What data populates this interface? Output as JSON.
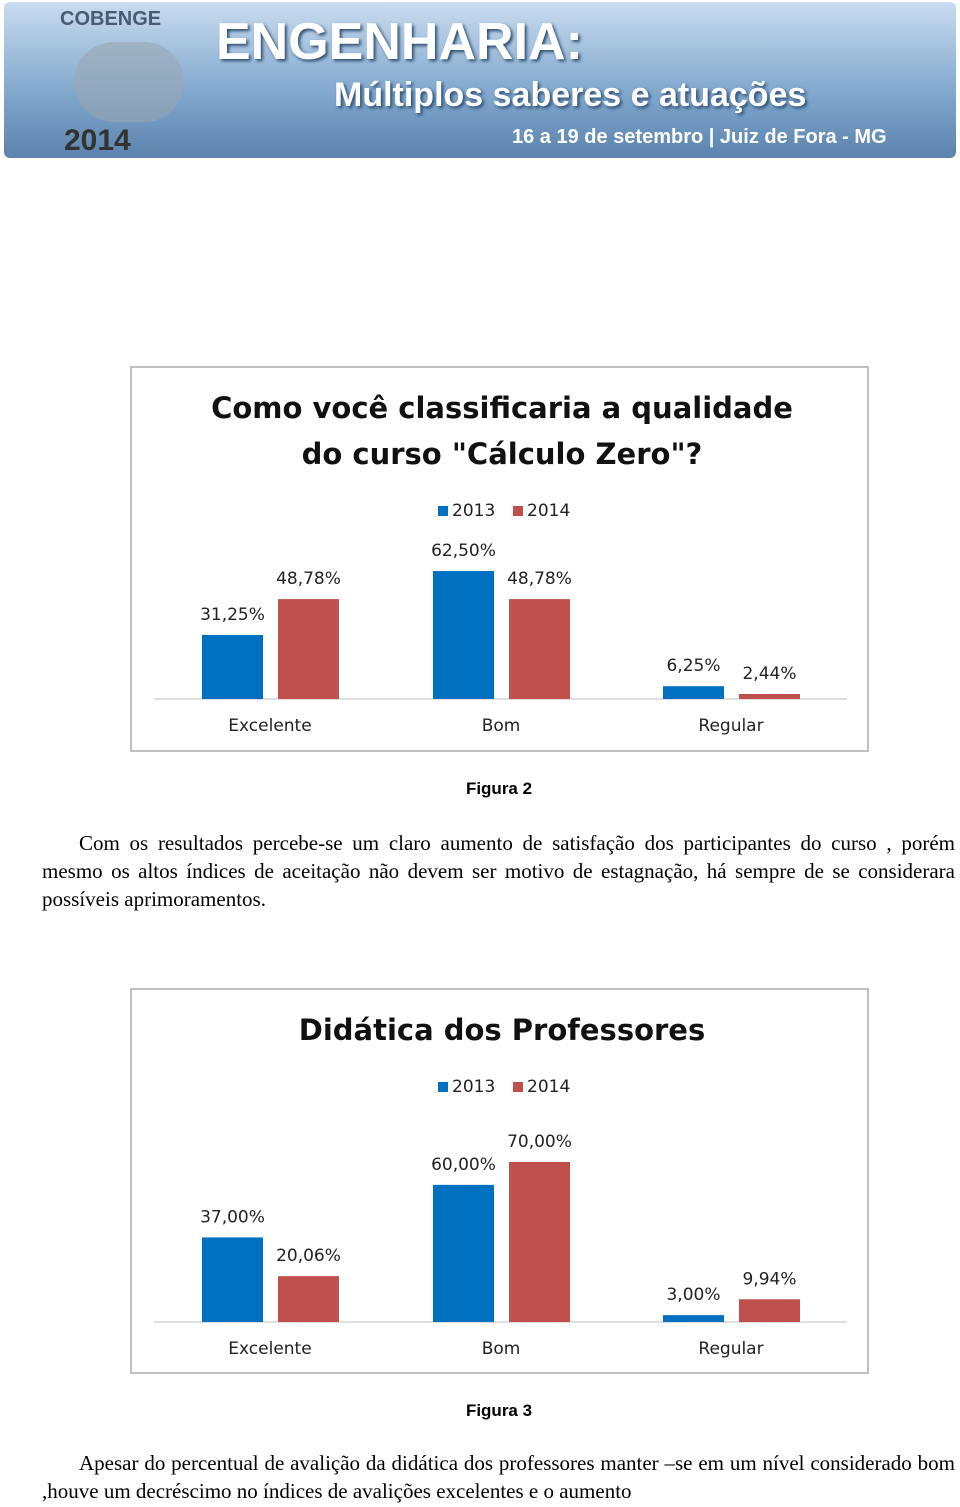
{
  "header": {
    "event": "COBENGE",
    "year": "2014",
    "title": "ENGENHARIA:",
    "subtitle": "Múltiplos saberes e atuações",
    "dates": "16 a 19 de setembro | Juiz de Fora - MG"
  },
  "chart_data": [
    {
      "type": "bar",
      "title": "Como você classificaria a qualidade do curso \"Cálculo Zero\"?",
      "categories": [
        "Excelente",
        "Bom",
        "Regular"
      ],
      "series": [
        {
          "name": "2013",
          "color": "#0070c0",
          "values": [
            31.25,
            62.5,
            6.25
          ],
          "value_labels": [
            "31,25%",
            "62,50%",
            "6,25%"
          ]
        },
        {
          "name": "2014",
          "color": "#c0504d",
          "values": [
            48.78,
            48.78,
            2.44
          ],
          "value_labels": [
            "48,78%",
            "48,78%",
            "2,44%"
          ]
        }
      ],
      "legend": "top"
    },
    {
      "type": "bar",
      "title": "Didática dos Professores",
      "categories": [
        "Excelente",
        "Bom",
        "Regular"
      ],
      "series": [
        {
          "name": "2013",
          "color": "#0070c0",
          "values": [
            37,
            60,
            3
          ],
          "value_labels": [
            "37,00%",
            "60,00%",
            "3,00%"
          ]
        },
        {
          "name": "2014",
          "color": "#c0504d",
          "values": [
            20.06,
            70,
            9.94
          ],
          "value_labels": [
            "20,06%",
            "70,00%",
            "9,94%"
          ]
        }
      ],
      "legend": "top"
    }
  ],
  "captions": [
    "Figura 2",
    "Figura 3"
  ],
  "paragraphs": [
    "Com os resultados percebe-se um claro aumento de satisfação dos participantes do curso , porém mesmo os altos índices de aceitação não devem ser motivo de estagnação, há sempre de se considerara possíveis aprimoramentos.",
    "Apesar do percentual  de avalição  da didática dos professores manter –se em um nível considerado bom   ,houve um decréscimo no índices de avalições excelentes e o aumento"
  ]
}
